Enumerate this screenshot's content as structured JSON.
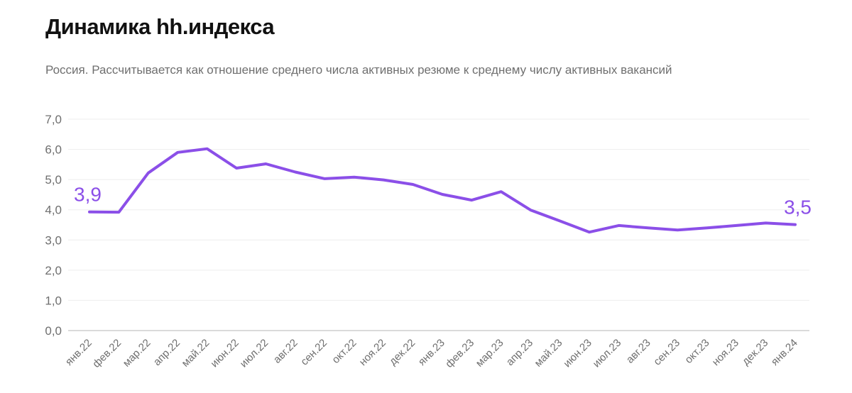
{
  "title": "Динамика hh.индекса",
  "subtitle": "Россия. Рассчитывается как отношение среднего числа активных резюме к среднему числу активных вакансий",
  "chart_data": {
    "type": "line",
    "title": "Динамика hh.индекса",
    "subtitle": "Россия. Рассчитывается как отношение среднего числа активных резюме к среднему числу активных вакансий",
    "xlabel": "",
    "ylabel": "",
    "ylim": [
      0,
      7
    ],
    "yticks": [
      "0,0",
      "1,0",
      "2,0",
      "3,0",
      "4,0",
      "5,0",
      "6,0",
      "7,0"
    ],
    "grid": true,
    "categories": [
      "янв.22",
      "фев.22",
      "мар.22",
      "апр.22",
      "май.22",
      "июн.22",
      "июл.22",
      "авг.22",
      "сен.22",
      "окт.22",
      "ноя.22",
      "дек.22",
      "янв.23",
      "фев.23",
      "мар.23",
      "апр.23",
      "май.23",
      "июн.23",
      "июл.23",
      "авг.23",
      "сен.23",
      "окт.23",
      "ноя.23",
      "дек.23",
      "янв.24"
    ],
    "series": [
      {
        "color": "#8b4fe8",
        "values": [
          3.93,
          3.92,
          5.22,
          5.9,
          6.02,
          5.38,
          5.52,
          5.25,
          5.03,
          5.08,
          4.99,
          4.84,
          4.51,
          4.32,
          4.6,
          3.99,
          3.63,
          3.26,
          3.48,
          3.4,
          3.33,
          3.4,
          3.48,
          3.56,
          3.51
        ]
      }
    ],
    "annotations": [
      {
        "index": 0,
        "text": "3,9"
      },
      {
        "index": 24,
        "text": "3,5"
      }
    ]
  }
}
